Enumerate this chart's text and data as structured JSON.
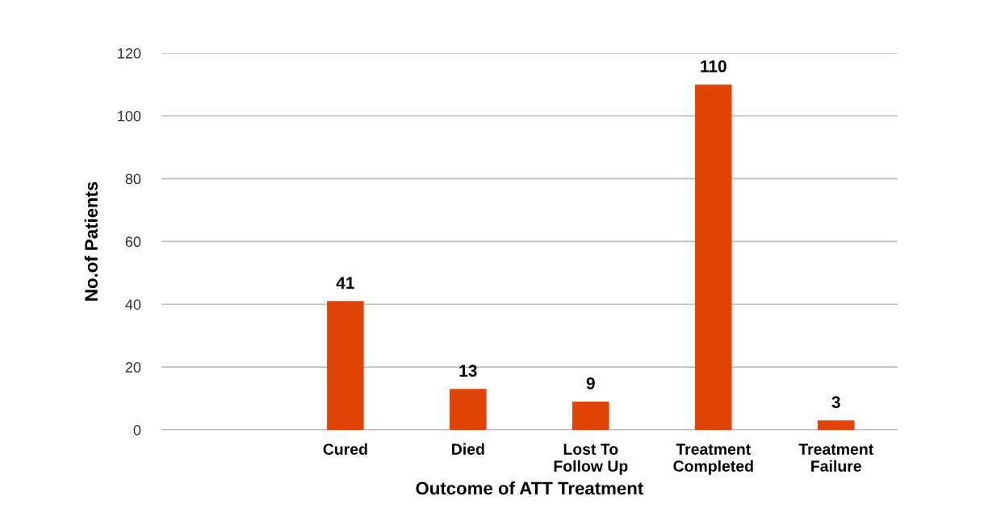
{
  "chart_data": {
    "type": "bar",
    "xlabel": "Outcome of ATT Treatment",
    "ylabel": "No.of Patients",
    "categories": [
      null,
      "Cured",
      "Died",
      "Lost To\nFollow Up",
      "Treatment\nCompleted",
      "Treatment\nFailure"
    ],
    "values": [
      null,
      41,
      13,
      9,
      110,
      3
    ],
    "color": "#e04406",
    "ylim": [
      0,
      120
    ],
    "yticks": [
      0,
      20,
      40,
      60,
      80,
      100,
      120
    ],
    "grid": "y",
    "data_labels": true
  }
}
